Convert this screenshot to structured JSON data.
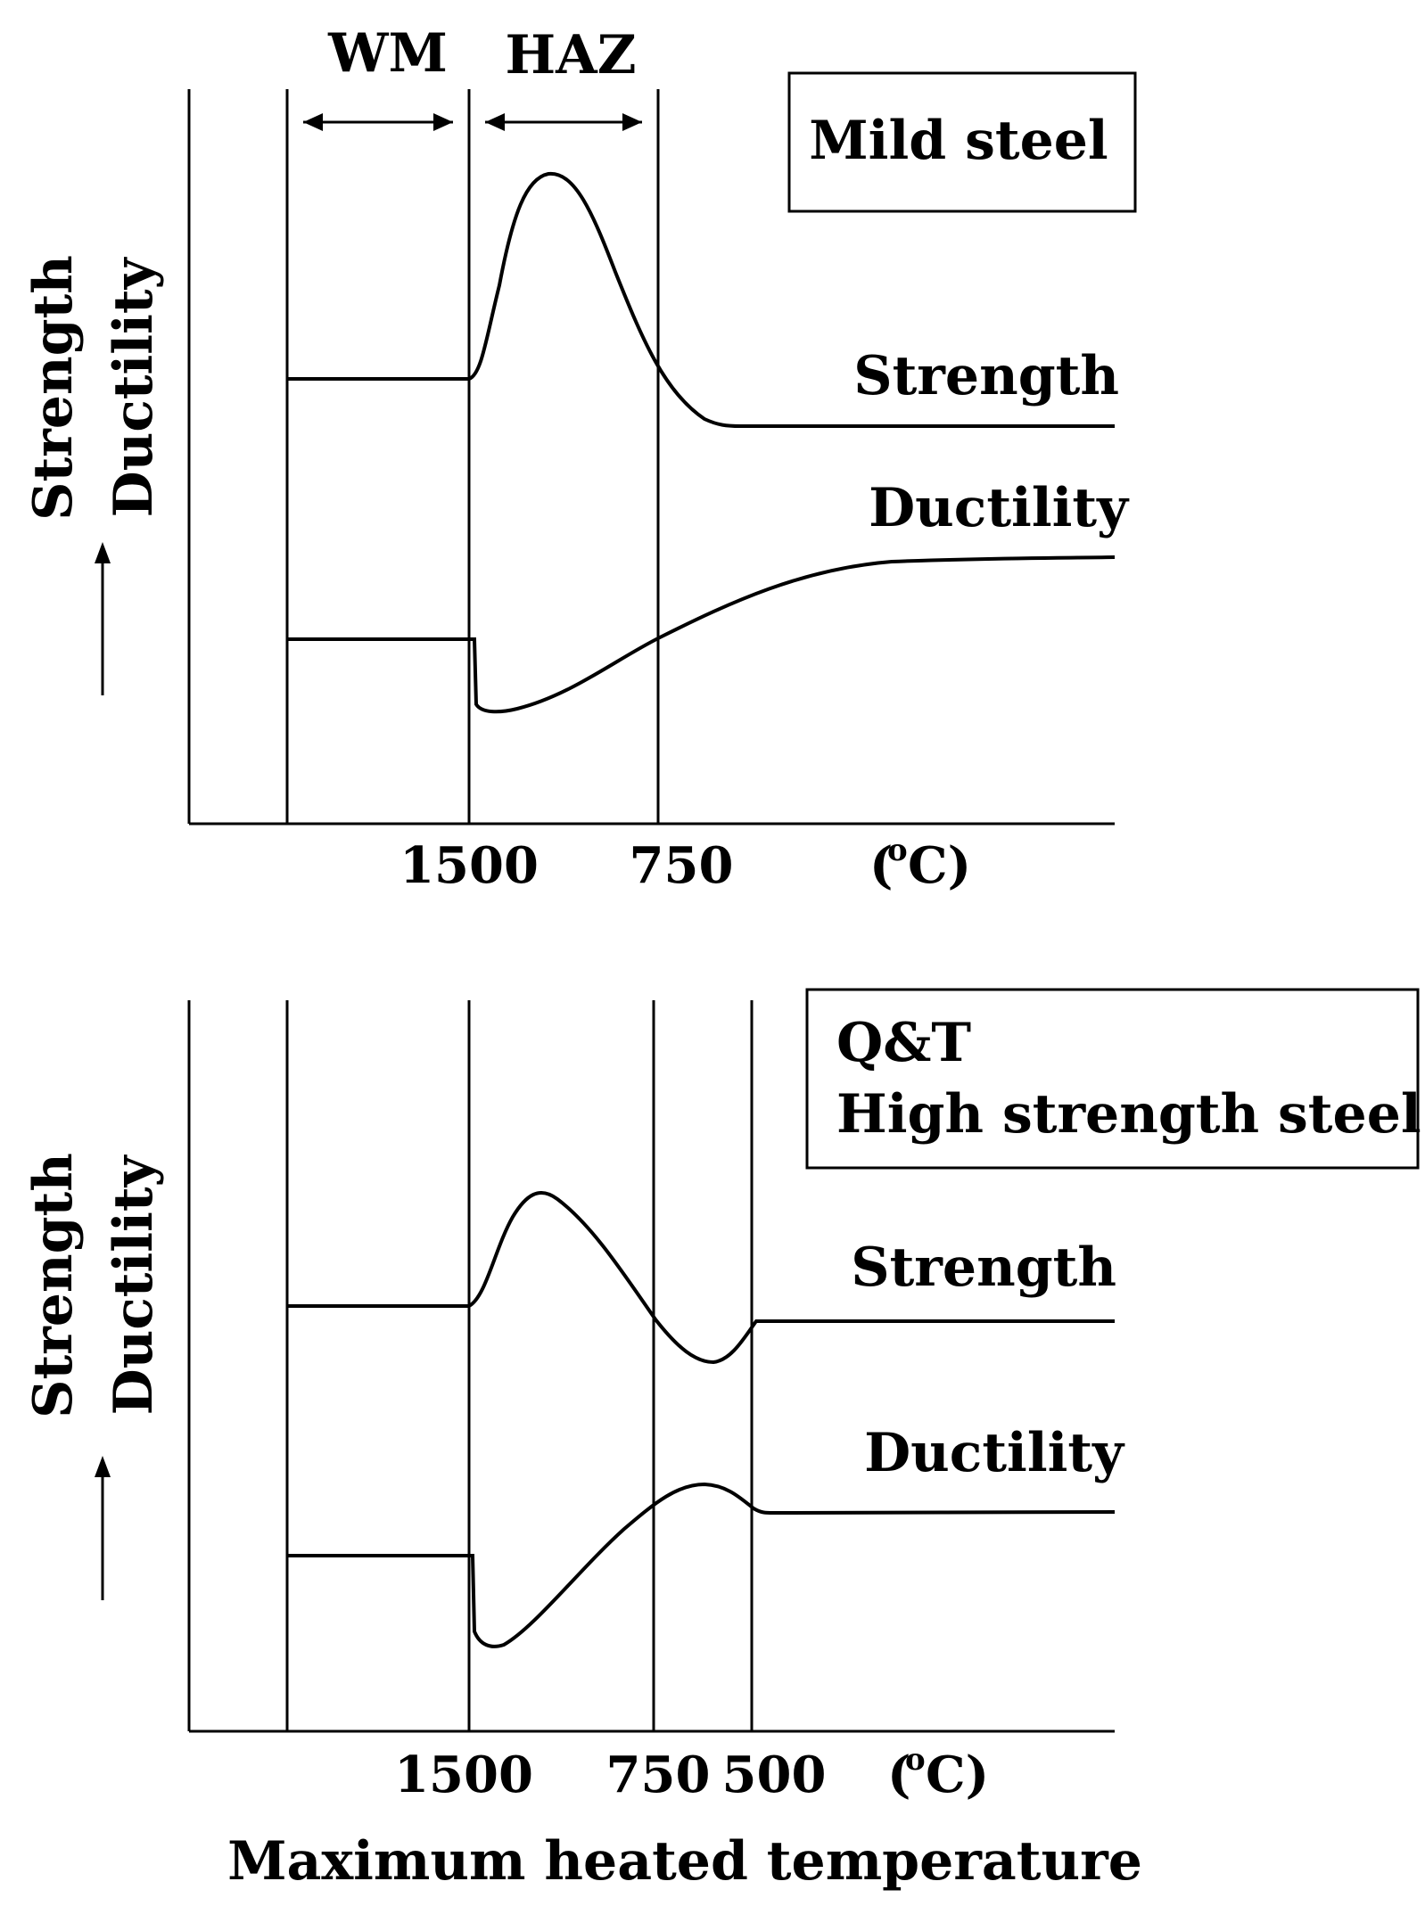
{
  "chart_data": [
    {
      "type": "line",
      "title": "Mild steel",
      "ylabel_lines": [
        "Strength",
        "Ductility"
      ],
      "zone_labels": [
        "WM",
        "HAZ"
      ],
      "x_ticks": [
        "1500",
        "750",
        "(oC)"
      ],
      "series": [
        {
          "name": "Strength",
          "shape": "rises to a peak just below 1500 then drops to a constant level beyond 750"
        },
        {
          "name": "Ductility",
          "shape": "drops sharply at 1500 then recovers gradually beyond 750 to a high level"
        }
      ]
    },
    {
      "type": "line",
      "title_lines": [
        "Q&T",
        "High strength steel"
      ],
      "ylabel_lines": [
        "Strength",
        "Ductility"
      ],
      "x_ticks": [
        "1500",
        "750",
        "500",
        "(oC)"
      ],
      "xlabel": "Maximum heated temperature",
      "series": [
        {
          "name": "Strength",
          "shape": "peak after 1500, dips to a minimum between 750 and 500, then returns to a constant level"
        },
        {
          "name": "Ductility",
          "shape": "drops sharply at 1500, rises to a maximum between 750 and 500, then settles at a constant level"
        }
      ]
    }
  ]
}
